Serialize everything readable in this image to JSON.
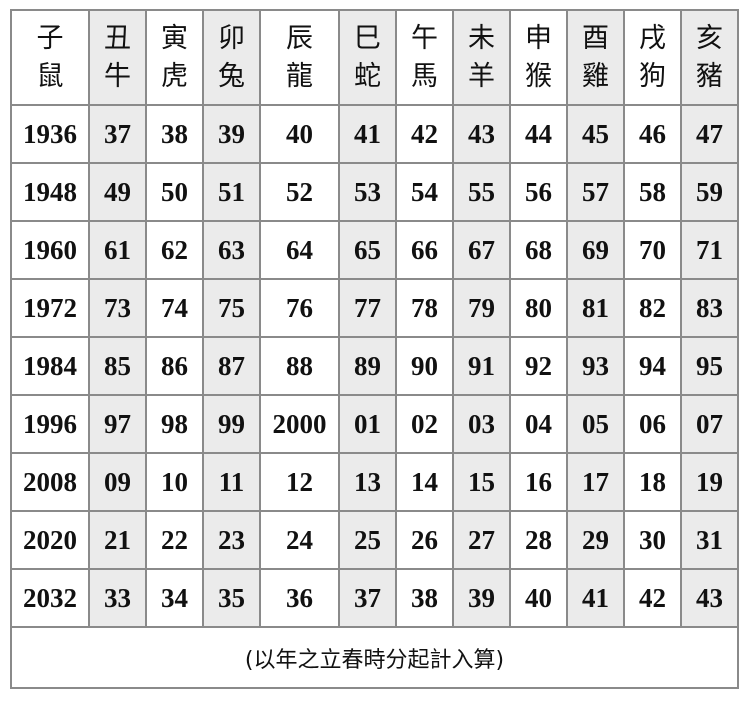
{
  "headers": [
    [
      "子",
      "鼠"
    ],
    [
      "丑",
      "牛"
    ],
    [
      "寅",
      "虎"
    ],
    [
      "卯",
      "兔"
    ],
    [
      "辰",
      "龍"
    ],
    [
      "巳",
      "蛇"
    ],
    [
      "午",
      "馬"
    ],
    [
      "未",
      "羊"
    ],
    [
      "申",
      "猴"
    ],
    [
      "酉",
      "雞"
    ],
    [
      "戌",
      "狗"
    ],
    [
      "亥",
      "豬"
    ]
  ],
  "rows": [
    [
      "1936",
      "37",
      "38",
      "39",
      "40",
      "41",
      "42",
      "43",
      "44",
      "45",
      "46",
      "47"
    ],
    [
      "1948",
      "49",
      "50",
      "51",
      "52",
      "53",
      "54",
      "55",
      "56",
      "57",
      "58",
      "59"
    ],
    [
      "1960",
      "61",
      "62",
      "63",
      "64",
      "65",
      "66",
      "67",
      "68",
      "69",
      "70",
      "71"
    ],
    [
      "1972",
      "73",
      "74",
      "75",
      "76",
      "77",
      "78",
      "79",
      "80",
      "81",
      "82",
      "83"
    ],
    [
      "1984",
      "85",
      "86",
      "87",
      "88",
      "89",
      "90",
      "91",
      "92",
      "93",
      "94",
      "95"
    ],
    [
      "1996",
      "97",
      "98",
      "99",
      "2000",
      "01",
      "02",
      "03",
      "04",
      "05",
      "06",
      "07"
    ],
    [
      "2008",
      "09",
      "10",
      "11",
      "12",
      "13",
      "14",
      "15",
      "16",
      "17",
      "18",
      "19"
    ],
    [
      "2020",
      "21",
      "22",
      "23",
      "24",
      "25",
      "26",
      "27",
      "28",
      "29",
      "30",
      "31"
    ],
    [
      "2032",
      "33",
      "34",
      "35",
      "36",
      "37",
      "38",
      "39",
      "40",
      "41",
      "42",
      "43"
    ]
  ],
  "footer": "(以年之立春時分起計入算)",
  "colors": {
    "shaded": "#ebebeb",
    "border": "#8a8a8a"
  }
}
